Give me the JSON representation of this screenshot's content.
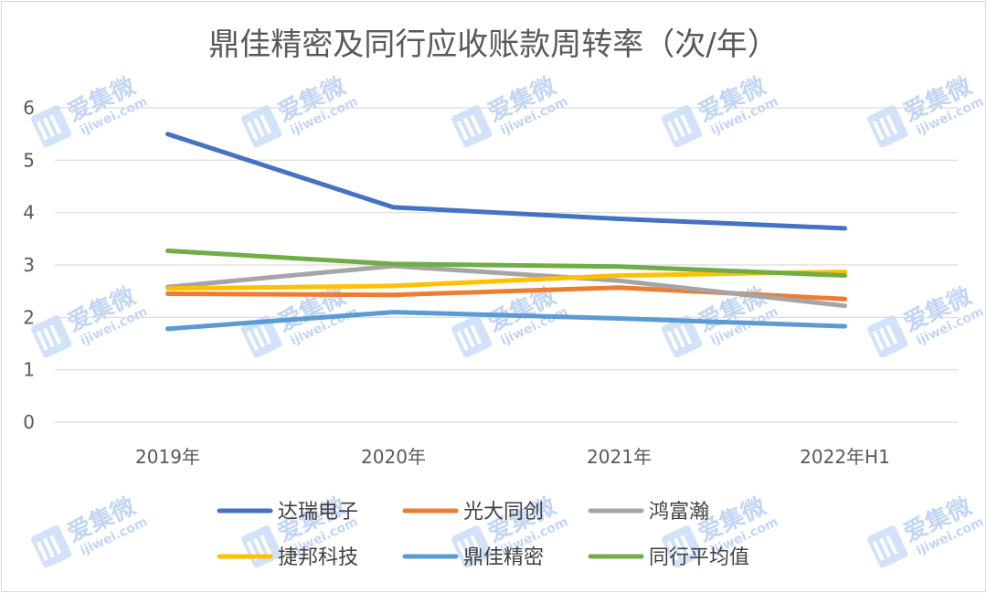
{
  "chart_data": {
    "type": "line",
    "title": "鼎佳精密及同行应收账款周转率（次/年）",
    "categories": [
      "2019年",
      "2020年",
      "2021年",
      "2022年H1"
    ],
    "y_ticks": [
      "0",
      "1",
      "2",
      "3",
      "4",
      "5",
      "6"
    ],
    "ylim": [
      0,
      6
    ],
    "grid": true,
    "legend_position": "bottom",
    "series": [
      {
        "name": "达瑞电子",
        "color": "#4472c4",
        "values": [
          5.5,
          4.1,
          3.88,
          3.7
        ]
      },
      {
        "name": "光大同创",
        "color": "#ed7d31",
        "values": [
          2.45,
          2.43,
          2.57,
          2.35
        ]
      },
      {
        "name": "鸿富瀚",
        "color": "#a5a5a5",
        "values": [
          2.58,
          2.98,
          2.7,
          2.22
        ]
      },
      {
        "name": "捷邦科技",
        "color": "#ffc000",
        "values": [
          2.55,
          2.6,
          2.8,
          2.87
        ]
      },
      {
        "name": "鼎佳精密",
        "color": "#5b9bd5",
        "values": [
          1.78,
          2.1,
          1.98,
          1.83
        ]
      },
      {
        "name": "同行平均值",
        "color": "#70ad47",
        "values": [
          3.27,
          3.02,
          2.97,
          2.8
        ]
      }
    ]
  },
  "watermark": {
    "cn": "爱集微",
    "en": "ijiwei.com",
    "logo": "ijiwei-logo"
  }
}
